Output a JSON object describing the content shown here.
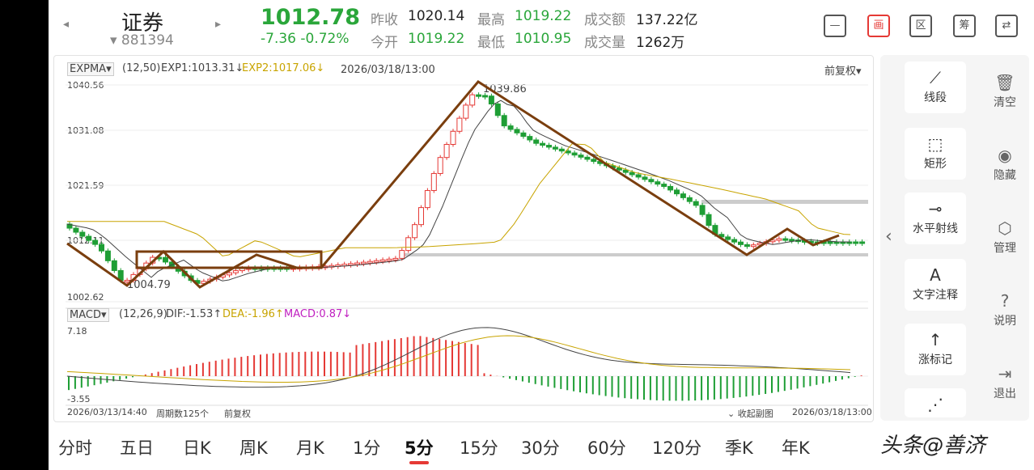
{
  "header": {
    "name": "证券",
    "code": "▾ 881394",
    "price": "1012.78",
    "change": "-7.36  -0.72%",
    "quotes": {
      "prev_close_label": "昨收",
      "prev_close": "1020.14",
      "open_label": "今开",
      "open": "1019.22",
      "high_label": "最高",
      "high": "1019.22",
      "low_label": "最低",
      "low": "1010.95",
      "amount_label": "成交额",
      "amount": "137.22亿",
      "volume_label": "成交量",
      "volume": "1262万"
    },
    "tools": [
      "—",
      "画",
      "区",
      "筹",
      "⇄"
    ]
  },
  "chart": {
    "main_indicator": "EXPMA▾",
    "main_params": "(12,50)",
    "exp1": "EXP1:1013.31↓",
    "exp2": "EXP2:1017.06↓",
    "timestamp": "2026/03/18/13:00",
    "adjust": "前复权▾",
    "y_ticks": [
      "1040.56",
      "1031.08",
      "1021.59",
      "1012.11",
      "1002.62"
    ],
    "high_marker": "1039.86",
    "low_marker": "1004.79",
    "macd_indicator": "MACD▾",
    "macd_params": "(12,26,9)",
    "dif": "DIF:-1.53↑",
    "dea": "DEA:-1.96↑",
    "macd": "MACD:0.87↓",
    "macd_max": "7.18",
    "macd_min": "-3.55",
    "start_date": "2026/03/13/14:40",
    "bar_count": "周期数125个",
    "adjust_footer": "前复权",
    "collapse_sub": "收起副图",
    "end_date": "2026/03/18/13:00",
    "colors": {
      "up": "#e53935",
      "down": "#1e9e35",
      "exp1": "#444444",
      "exp2": "#c8a400",
      "drawing": "#7a3e0e"
    }
  },
  "periods": [
    "分时",
    "五日",
    "日K",
    "周K",
    "月K",
    "1分",
    "5分",
    "15分",
    "30分",
    "60分",
    "120分",
    "季K",
    "年K"
  ],
  "active_period": "5分",
  "draw_tools": [
    {
      "icon": "⟋",
      "label": "线段"
    },
    {
      "icon": "⬚",
      "label": "矩形"
    },
    {
      "icon": "⊸",
      "label": "水平射线"
    },
    {
      "icon": "A",
      "label": "文字注释"
    },
    {
      "icon": "↑",
      "label": "涨标记"
    },
    {
      "icon": "⋰",
      "label": ""
    }
  ],
  "side_actions": [
    {
      "icon": "🗑",
      "label": "清空"
    },
    {
      "icon": "◉",
      "label": "隐藏"
    },
    {
      "icon": "⬡",
      "label": "管理"
    },
    {
      "icon": "?",
      "label": "说明"
    },
    {
      "icon": "⇥",
      "label": "退出"
    }
  ],
  "watermark": "头条@善济"
}
